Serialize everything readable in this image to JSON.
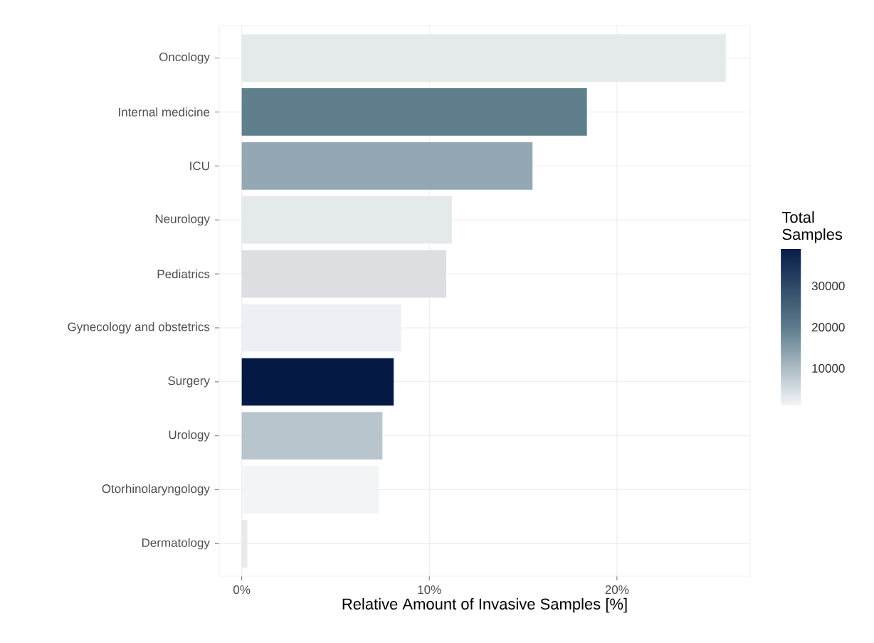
{
  "chart_data": {
    "type": "bar",
    "orientation": "horizontal",
    "xlabel": "Relative Amount of Invasive Samples [%]",
    "categories": [
      "Oncology",
      "Internal medicine",
      "ICU",
      "Neurology",
      "Pediatrics",
      "Gynecology and obstetrics",
      "Surgery",
      "Urology",
      "Otorhinolaryngology",
      "Dermatology"
    ],
    "values": [
      25.8,
      18.4,
      15.5,
      11.2,
      10.9,
      8.5,
      8.1,
      7.5,
      7.3,
      0.3
    ],
    "colors": [
      "#e4e9ea",
      "#5f7f8c",
      "#94a8b3",
      "#e4e9ea",
      "#dcdee2",
      "#ecf0f4",
      "#041a45",
      "#b8c5cd",
      "#f2f4f5",
      "#e8eaec"
    ],
    "xlim": [
      -1.2,
      27.1
    ],
    "xticks": [
      {
        "value": 0,
        "label": "0%"
      },
      {
        "value": 10,
        "label": "10%"
      },
      {
        "value": 20,
        "label": "20%"
      }
    ],
    "grid": true,
    "clabel": "Total Samples",
    "clim": [
      1000,
      39000
    ],
    "cticks": [
      10000,
      20000,
      30000
    ]
  }
}
